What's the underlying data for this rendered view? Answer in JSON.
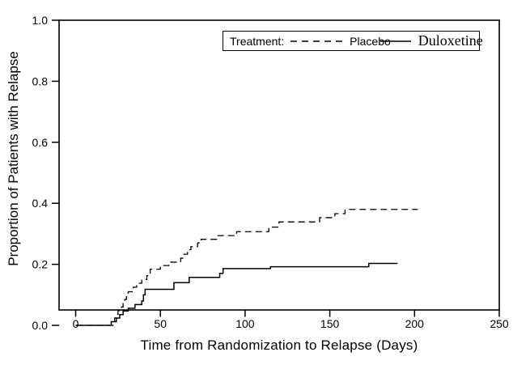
{
  "figure": {
    "background": "#ffffff",
    "axis_color": "#000000",
    "curve_color": "#000000"
  },
  "y_axis": {
    "title": "Proportion of Patients with Relapse",
    "tick_labels": [
      "0.0",
      "0.2",
      "0.4",
      "0.6",
      "0.8",
      "1.0"
    ],
    "tick_values": [
      0,
      0.2,
      0.4,
      0.6,
      0.8,
      1.0
    ]
  },
  "x_axis": {
    "title": "Time from Randomization to Relapse (Days)",
    "tick_labels": [
      "0",
      "50",
      "100",
      "150",
      "200",
      "250"
    ],
    "tick_values": [
      0,
      50,
      100,
      150,
      200,
      250
    ]
  },
  "legend": {
    "label": "Treatment:",
    "entries": [
      {
        "name": "Placebo",
        "line": "dashed"
      },
      {
        "name": "Duloxetine",
        "line": "solid"
      }
    ]
  },
  "chart_data": {
    "type": "line",
    "subtype": "kaplan-meier-step-cumulative-incidence",
    "title": "",
    "xlabel": "Time from Randomization to Relapse (Days)",
    "ylabel": "Proportion of Patients with Relapse",
    "xlim": [
      0,
      250
    ],
    "ylim": [
      0.0,
      1.0
    ],
    "grid": false,
    "legend_position": "top-inside",
    "series": [
      {
        "name": "Placebo",
        "style": "dashed",
        "color": "#000000",
        "end_day": 202,
        "final_value": 0.38,
        "steps": [
          [
            0,
            0
          ],
          [
            22,
            0.012
          ],
          [
            23,
            0.024
          ],
          [
            24,
            0.036
          ],
          [
            25,
            0.048
          ],
          [
            27,
            0.06
          ],
          [
            28,
            0.072
          ],
          [
            29,
            0.085
          ],
          [
            30,
            0.098
          ],
          [
            31,
            0.11
          ],
          [
            34,
            0.125
          ],
          [
            36,
            0.138
          ],
          [
            39,
            0.15
          ],
          [
            42,
            0.163
          ],
          [
            44,
            0.184
          ],
          [
            50,
            0.196
          ],
          [
            55,
            0.207
          ],
          [
            62,
            0.22
          ],
          [
            64,
            0.233
          ],
          [
            66,
            0.248
          ],
          [
            68,
            0.258
          ],
          [
            72,
            0.27
          ],
          [
            74,
            0.282
          ],
          [
            84,
            0.294
          ],
          [
            95,
            0.307
          ],
          [
            114,
            0.322
          ],
          [
            120,
            0.339
          ],
          [
            144,
            0.353
          ],
          [
            153,
            0.366
          ],
          [
            159,
            0.38
          ]
        ]
      },
      {
        "name": "Duloxetine",
        "style": "solid",
        "color": "#000000",
        "end_day": 190,
        "final_value": 0.2,
        "steps": [
          [
            0,
            0
          ],
          [
            21,
            0.012
          ],
          [
            24,
            0.024
          ],
          [
            26,
            0.035
          ],
          [
            28,
            0.047
          ],
          [
            31,
            0.056
          ],
          [
            35,
            0.068
          ],
          [
            39,
            0.08
          ],
          [
            40,
            0.1
          ],
          [
            41,
            0.118
          ],
          [
            58,
            0.14
          ],
          [
            67,
            0.157
          ],
          [
            85,
            0.17
          ],
          [
            87,
            0.186
          ],
          [
            115,
            0.192
          ],
          [
            173,
            0.203
          ]
        ]
      }
    ]
  }
}
